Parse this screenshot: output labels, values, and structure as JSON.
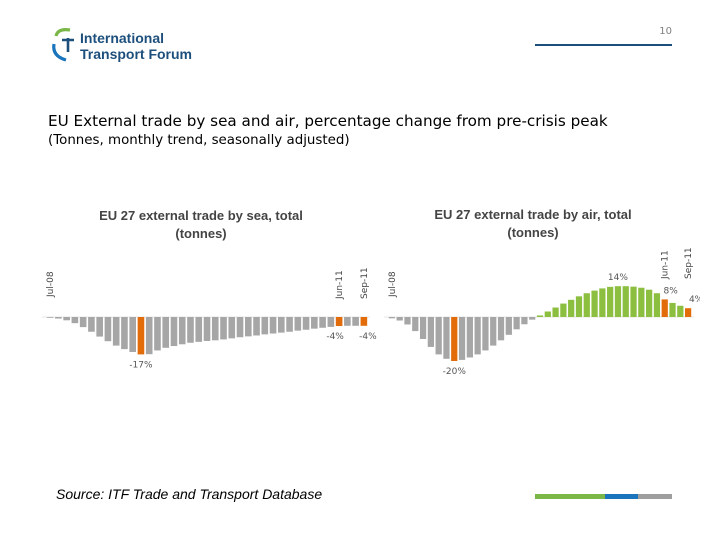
{
  "header": {
    "logo_line1": "International",
    "logo_line2": "Transport Forum",
    "page_number": "10"
  },
  "slide": {
    "title": "EU External trade by sea and air, percentage change from pre-crisis peak",
    "subtitle": "(Tonnes, monthly trend, seasonally adjusted)",
    "source": "Source: ITF Trade and Transport Database"
  },
  "colors": {
    "sea_bar": "#a6a6a6",
    "air_negative_bar": "#a6a6a6",
    "air_positive_bar": "#8cbf3f",
    "highlight_bar": "#e36c0a",
    "brand_blue": "#1d4f7c"
  },
  "chart_data": [
    {
      "type": "bar",
      "title_line1": "EU 27 external trade by sea, total",
      "title_line2": "(tonnes)",
      "unit": "% change from pre-crisis peak",
      "ylim": [
        -20,
        16
      ],
      "vertical_labels": [
        {
          "label": "Jul-08",
          "index": 0
        },
        {
          "label": "Jun-11",
          "index": 35
        },
        {
          "label": "Sep-11",
          "index": 38
        }
      ],
      "annotations": [
        {
          "text": "-17%",
          "index": 11
        },
        {
          "text": "-4%",
          "index": 35
        },
        {
          "text": "-4%",
          "index": 38
        }
      ],
      "highlight_indices": [
        11,
        35,
        38
      ],
      "values": [
        -0.3,
        -0.7,
        -1.5,
        -2.8,
        -4.6,
        -6.7,
        -8.9,
        -11.0,
        -13.0,
        -14.6,
        -15.9,
        -17.0,
        -16.9,
        -15.2,
        -14.0,
        -13.2,
        -12.4,
        -11.7,
        -11.3,
        -10.9,
        -10.6,
        -10.2,
        -9.7,
        -9.2,
        -8.8,
        -8.4,
        -7.9,
        -7.5,
        -7.1,
        -6.7,
        -6.2,
        -5.8,
        -5.3,
        -4.9,
        -4.5,
        -4.1,
        -4.0,
        -4.0,
        -4.0
      ]
    },
    {
      "type": "bar",
      "title_line1": "EU 27 external trade by air, total",
      "title_line2": "(tonnes)",
      "unit": "% change from pre-crisis peak",
      "ylim": [
        -20,
        16
      ],
      "vertical_labels": [
        {
          "label": "Jul-08",
          "index": 0
        },
        {
          "label": "Jun-11",
          "index": 35
        },
        {
          "label": "Sep-11",
          "index": 38
        }
      ],
      "annotations": [
        {
          "text": "-20%",
          "index": 8
        },
        {
          "text": "14%",
          "index": 29
        },
        {
          "text": "8%",
          "index": 35
        },
        {
          "text": "4%",
          "index": 38
        }
      ],
      "highlight_indices": [
        8,
        35,
        38
      ],
      "values": [
        -0.6,
        -1.6,
        -3.4,
        -6.4,
        -10.0,
        -13.6,
        -17.0,
        -19.0,
        -20.0,
        -19.5,
        -18.4,
        -17.0,
        -15.2,
        -13.0,
        -10.6,
        -8.1,
        -5.6,
        -3.3,
        -1.2,
        0.7,
        2.5,
        4.3,
        6.1,
        7.8,
        9.4,
        10.8,
        12.0,
        13.0,
        13.7,
        14.0,
        14.0,
        13.8,
        13.3,
        12.4,
        10.8,
        8.0,
        6.4,
        5.1,
        4.0
      ]
    }
  ]
}
